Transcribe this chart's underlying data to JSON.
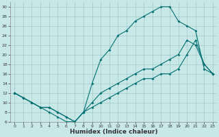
{
  "xlabel": "Humidex (Indice chaleur)",
  "bg_color": "#c8e8e8",
  "grid_color": "#a0c8c8",
  "line_color": "#007070",
  "line1_x": [
    0,
    1,
    2,
    3,
    4,
    5,
    6,
    7,
    8,
    9,
    10,
    11,
    12,
    13,
    14,
    15,
    16,
    17,
    18,
    19,
    20,
    21,
    22,
    23
  ],
  "line1_y": [
    12,
    11,
    10,
    9,
    8,
    7,
    6,
    6,
    8,
    14,
    19,
    21,
    24,
    25,
    27,
    28,
    29,
    30,
    30,
    27,
    26,
    25,
    17,
    16
  ],
  "line2_x": [
    0,
    1,
    2,
    3,
    4,
    5,
    6,
    7,
    8,
    9,
    10,
    11,
    12,
    13,
    14,
    15,
    16,
    17,
    18,
    19,
    20,
    21,
    22,
    23
  ],
  "line2_y": [
    12,
    11,
    10,
    9,
    9,
    8,
    7,
    6,
    8,
    10,
    12,
    13,
    14,
    15,
    16,
    17,
    17,
    18,
    19,
    20,
    23,
    22,
    18,
    16
  ],
  "line3_x": [
    0,
    1,
    2,
    3,
    4,
    5,
    6,
    7,
    8,
    9,
    10,
    11,
    12,
    13,
    14,
    15,
    16,
    17,
    18,
    19,
    20,
    21,
    22,
    23
  ],
  "line3_y": [
    12,
    11,
    10,
    9,
    9,
    8,
    7,
    6,
    8,
    9,
    10,
    11,
    12,
    13,
    14,
    15,
    15,
    16,
    16,
    17,
    20,
    23,
    18,
    16
  ],
  "ylim": [
    6,
    31
  ],
  "xlim": [
    -0.5,
    23.5
  ],
  "yticks": [
    6,
    8,
    10,
    12,
    14,
    16,
    18,
    20,
    22,
    24,
    26,
    28,
    30
  ],
  "xticks": [
    0,
    1,
    2,
    3,
    4,
    5,
    6,
    7,
    8,
    9,
    10,
    11,
    12,
    13,
    14,
    15,
    16,
    17,
    18,
    19,
    20,
    21,
    22,
    23
  ],
  "tick_fontsize": 4.5,
  "xlabel_fontsize": 6.5,
  "marker_size": 2.0,
  "line_width": 0.8
}
